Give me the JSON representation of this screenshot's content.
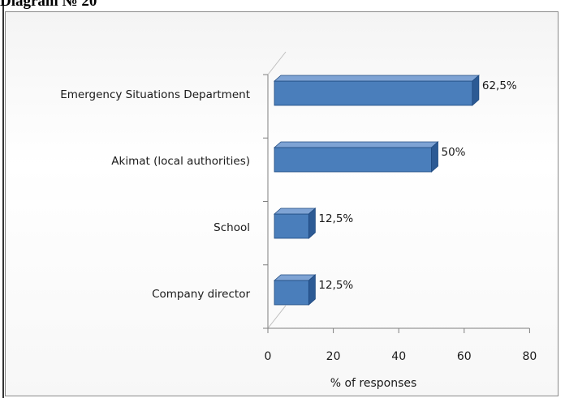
{
  "caption": "Diagram № 20",
  "colors": {
    "bar_front": "#4a7ebb",
    "bar_top": "#7ea3d4",
    "bar_side": "#2c5a94",
    "bar_outline": "#1f4a80",
    "axis": "#7f7f7f",
    "wall": "#bfbfbf"
  },
  "chart_data": {
    "type": "bar",
    "orientation": "horizontal",
    "style": "3d",
    "categories": [
      "Emergency Situations Department",
      "Akimat (local authorities)",
      "School",
      "Company director"
    ],
    "values": [
      62.5,
      50,
      12.5,
      12.5
    ],
    "data_labels": [
      "62,5%",
      "50%",
      "12,5%",
      "12,5%"
    ],
    "xlabel": "% of responses",
    "ylabel": "",
    "xlim": [
      0,
      80
    ],
    "x_ticks": [
      0,
      20,
      40,
      60,
      80
    ],
    "grid": false,
    "legend": "none"
  }
}
